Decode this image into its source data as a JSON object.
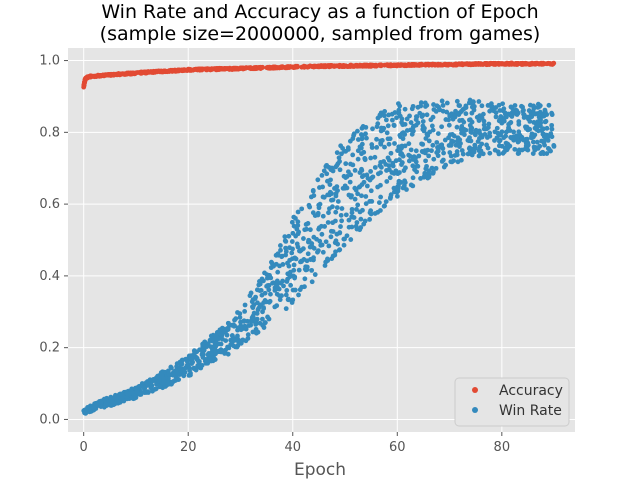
{
  "chart_data": {
    "type": "scatter",
    "title": "Win Rate and Accuracy as a function of Epoch\n(sample size=2000000, sampled from games)",
    "xlabel": "Epoch",
    "ylabel": "",
    "xlim": [
      -3,
      94
    ],
    "ylim": [
      -0.035,
      1.035
    ],
    "xticks": [
      0,
      20,
      40,
      60,
      80
    ],
    "yticks": [
      0.0,
      0.2,
      0.4,
      0.6,
      0.8,
      1.0
    ],
    "grid": true,
    "legend_position": "lower-right",
    "series": [
      {
        "name": "Accuracy",
        "color": "#E24A33",
        "points": [
          [
            0.0,
            0.925
          ],
          [
            0.1,
            0.935
          ],
          [
            0.2,
            0.942
          ],
          [
            0.3,
            0.948
          ],
          [
            0.5,
            0.951
          ],
          [
            0.7,
            0.953
          ],
          [
            1,
            0.955
          ],
          [
            1.5,
            0.956
          ],
          [
            2,
            0.957
          ],
          [
            3,
            0.958
          ],
          [
            4,
            0.959
          ],
          [
            5,
            0.96
          ],
          [
            6,
            0.961
          ],
          [
            8,
            0.963
          ],
          [
            10,
            0.965
          ],
          [
            12,
            0.967
          ],
          [
            15,
            0.97
          ],
          [
            18,
            0.972
          ],
          [
            20,
            0.974
          ],
          [
            25,
            0.976
          ],
          [
            30,
            0.978
          ],
          [
            35,
            0.98
          ],
          [
            40,
            0.982
          ],
          [
            45,
            0.984
          ],
          [
            50,
            0.985
          ],
          [
            55,
            0.986
          ],
          [
            60,
            0.987
          ],
          [
            65,
            0.988
          ],
          [
            70,
            0.989
          ],
          [
            75,
            0.99
          ],
          [
            80,
            0.991
          ],
          [
            85,
            0.991
          ],
          [
            90,
            0.991
          ]
        ]
      },
      {
        "name": "Win Rate",
        "color": "#348ABD",
        "points": [
          [
            0,
            0.025
          ],
          [
            2,
            0.035
          ],
          [
            4,
            0.045
          ],
          [
            6,
            0.055
          ],
          [
            8,
            0.065
          ],
          [
            10,
            0.075
          ],
          [
            12,
            0.09
          ],
          [
            15,
            0.11
          ],
          [
            18,
            0.13
          ],
          [
            20,
            0.15
          ],
          [
            22,
            0.17
          ],
          [
            25,
            0.2
          ],
          [
            28,
            0.23
          ],
          [
            30,
            0.26
          ],
          [
            32,
            0.29
          ],
          [
            34,
            0.32
          ],
          [
            36,
            0.36
          ],
          [
            38,
            0.4
          ],
          [
            40,
            0.44
          ],
          [
            42,
            0.48
          ],
          [
            44,
            0.52
          ],
          [
            46,
            0.56
          ],
          [
            48,
            0.6
          ],
          [
            50,
            0.63
          ],
          [
            52,
            0.66
          ],
          [
            54,
            0.69
          ],
          [
            56,
            0.71
          ],
          [
            58,
            0.73
          ],
          [
            60,
            0.75
          ],
          [
            62,
            0.76
          ],
          [
            64,
            0.77
          ],
          [
            66,
            0.78
          ],
          [
            68,
            0.79
          ],
          [
            70,
            0.8
          ],
          [
            72,
            0.8
          ],
          [
            74,
            0.81
          ],
          [
            76,
            0.81
          ],
          [
            78,
            0.81
          ],
          [
            80,
            0.81
          ],
          [
            82,
            0.81
          ],
          [
            84,
            0.81
          ],
          [
            86,
            0.81
          ],
          [
            88,
            0.81
          ],
          [
            90,
            0.81
          ]
        ],
        "spread": [
          [
            0,
            0.01
          ],
          [
            10,
            0.015
          ],
          [
            20,
            0.03
          ],
          [
            30,
            0.05
          ],
          [
            40,
            0.12
          ],
          [
            50,
            0.15
          ],
          [
            60,
            0.13
          ],
          [
            70,
            0.09
          ],
          [
            80,
            0.07
          ],
          [
            90,
            0.07
          ]
        ]
      }
    ]
  }
}
